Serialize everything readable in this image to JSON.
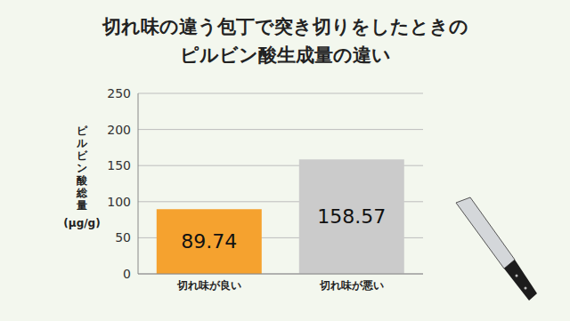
{
  "chart_data": {
    "type": "bar",
    "title": "切れ味の違う包丁で突き切りをしたときの\nピルビン酸生成量の違い",
    "ylabel": "ピルビン酸総量\n(μg/g)",
    "categories": [
      "切れ味が良い",
      "切れ味が悪い"
    ],
    "values": [
      89.74,
      158.57
    ],
    "colors": [
      "#f5a22f",
      "#cbcbcb"
    ],
    "ylim": [
      0,
      250
    ],
    "yticks": [
      0,
      50,
      100,
      150,
      200,
      250
    ],
    "grid": true,
    "data_labels": true
  }
}
